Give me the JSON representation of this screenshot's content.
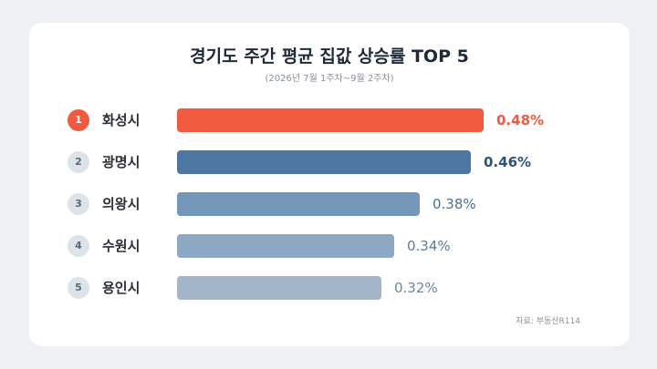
{
  "title": "경기도 주간 평균 집값 상승률 TOP 5",
  "subtitle": "(2026년 7월 1주차~9월 2주차)",
  "source": "자료: 부동산R114",
  "chart_data": {
    "type": "bar",
    "orientation": "horizontal",
    "title": "경기도 주간 평균 집값 상승률 TOP 5",
    "subtitle": "(2026년 7월 1주차~9월 2주차)",
    "grid": false,
    "legend": "none",
    "rows": [
      {
        "rank": "1",
        "category": "화성시",
        "value": 0.48,
        "label": "0.48%",
        "color": "#f05a3f",
        "label_color": "#f05a3f"
      },
      {
        "rank": "2",
        "category": "광명시",
        "value": 0.46,
        "label": "0.46%",
        "color": "#4e76a3",
        "label_color": "#2f527a"
      },
      {
        "rank": "3",
        "category": "의왕시",
        "value": 0.38,
        "label": "0.38%",
        "color": "#7496b8",
        "label_color": "#4d6e92"
      },
      {
        "rank": "4",
        "category": "수원시",
        "value": 0.34,
        "label": "0.34%",
        "color": "#8da8c3",
        "label_color": "#5f7d9c"
      },
      {
        "rank": "5",
        "category": "용인시",
        "value": 0.32,
        "label": "0.32%",
        "color": "#a4b5c9",
        "label_color": "#6f86a0"
      }
    ]
  }
}
